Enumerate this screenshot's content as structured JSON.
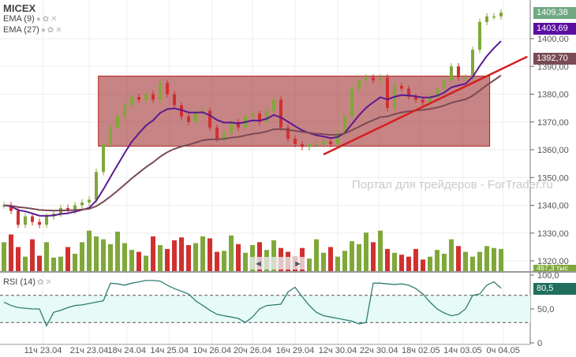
{
  "legend": {
    "symbol": "MICEX",
    "ema1": "EMA (9)",
    "ema2": "EMA (27)",
    "rsi": "RSI (14)"
  },
  "watermark": "Портал для трейдеров - ForTrader.ru",
  "tags": {
    "last": "1409,38",
    "ema9": "1403,69",
    "ema27": "1392,70",
    "volume": "467,3 тыс",
    "rsi": "80,5"
  },
  "colors": {
    "up": "#7fa83a",
    "down": "#d13030",
    "ema9": "#5b1a8f",
    "ema27": "#7a4a55",
    "zone": "#a23232",
    "trend": "#d42020",
    "rsi": "#2e7d70",
    "rsi_fill": "#e6faf7"
  },
  "chart_data": {
    "type": "candlestick",
    "price_axis": {
      "ylim": [
        1316,
        1412
      ],
      "ticks": [
        "1320,00",
        "1330,00",
        "1340,00",
        "1350,00",
        "1360,00",
        "1370,00",
        "1380,00",
        "1390,00",
        "1400,00"
      ],
      "tick_values": [
        1320,
        1330,
        1340,
        1350,
        1360,
        1370,
        1380,
        1390,
        1400
      ]
    },
    "time_ticks": [
      "11ч 23.04",
      "21ч 23.04",
      "18ч 24.04",
      "14ч 25.04",
      "10ч 26.04",
      "20ч 26.04",
      "16ч 29.04",
      "12ч 30.04",
      "22ч 30.04",
      "18ч 02.05",
      "14ч 03.05",
      "0ч 04.05"
    ],
    "time_tick_bar_index": [
      5.5,
      12,
      17.3,
      23.3,
      29.3,
      35,
      41,
      47,
      52.8,
      58.7,
      64.6,
      70.3
    ],
    "close": [
      1340,
      1338,
      1333,
      1336,
      1334,
      1333,
      1336,
      1337,
      1339,
      1338,
      1340,
      1341,
      1342,
      1352,
      1362,
      1368,
      1372,
      1376,
      1379,
      1378,
      1380,
      1378,
      1384,
      1380,
      1376,
      1372,
      1370,
      1373,
      1374,
      1368,
      1364,
      1366,
      1370,
      1368,
      1372,
      1373,
      1370,
      1374,
      1378,
      1368,
      1364,
      1362,
      1361,
      1362,
      1362,
      1363,
      1362,
      1366,
      1372,
      1382,
      1385,
      1386,
      1385,
      1386,
      1375,
      1383,
      1382,
      1379,
      1378,
      1377,
      1379,
      1382,
      1385,
      1390,
      1386,
      1386,
      1396,
      1406,
      1408,
      1408,
      1409.38
    ],
    "volume": [
      300,
      380,
      250,
      150,
      330,
      160,
      300,
      140,
      150,
      250,
      180,
      300,
      420,
      360,
      330,
      280,
      410,
      290,
      220,
      200,
      160,
      360,
      270,
      230,
      320,
      350,
      270,
      290,
      360,
      340,
      200,
      210,
      370,
      280,
      190,
      270,
      300,
      220,
      320,
      240,
      200,
      150,
      240,
      130,
      330,
      190,
      250,
      150,
      210,
      310,
      280,
      400,
      300,
      420,
      230,
      190,
      170,
      150,
      230,
      120,
      150,
      220,
      180,
      330,
      260,
      200,
      150,
      200,
      260,
      240,
      230
    ],
    "rsi": {
      "ylim": [
        0,
        100
      ],
      "levels": [
        30,
        70
      ],
      "ticks": [
        "0",
        "50,0",
        "100,0"
      ],
      "values": [
        60,
        55,
        52,
        51,
        50,
        50,
        25,
        45,
        48,
        52,
        55,
        56,
        58,
        60,
        62,
        88,
        87,
        85,
        88,
        90,
        92,
        92,
        91,
        85,
        80,
        76,
        72,
        62,
        55,
        48,
        42,
        40,
        38,
        36,
        30,
        38,
        50,
        55,
        56,
        57,
        75,
        82,
        68,
        55,
        45,
        40,
        38,
        36,
        34,
        32,
        28,
        30,
        88,
        88,
        87,
        86,
        87,
        85,
        80,
        72,
        60,
        50,
        44,
        40,
        42,
        50,
        70,
        72,
        85,
        90,
        80.5
      ]
    },
    "annotations": {
      "zone": {
        "price_range": [
          1361.3,
          1386.5
        ],
        "bar_range": [
          13.3,
          68.4
        ]
      },
      "trendline": {
        "from": {
          "bar": 45,
          "price": 1358.3
        },
        "to": {
          "bar": 73.7,
          "price": 1393.5
        }
      }
    }
  }
}
